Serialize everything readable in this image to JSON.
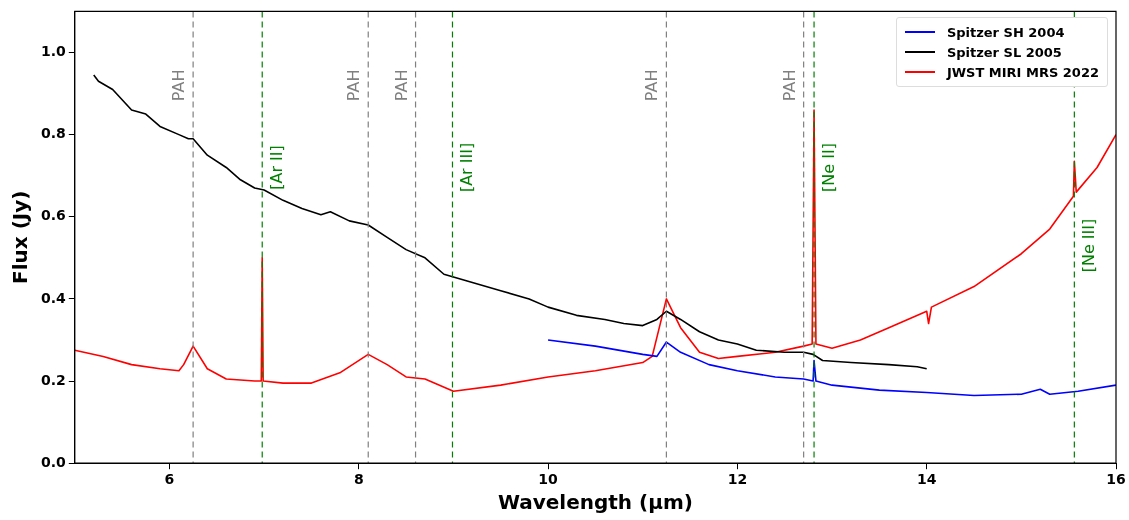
{
  "chart_data": {
    "type": "line",
    "xlabel": "Wavelength (μm)",
    "ylabel": "Flux (Jy)",
    "xlim": [
      5,
      16
    ],
    "xticks": [
      6,
      8,
      10,
      12,
      14,
      16
    ],
    "ylim": [
      0,
      1.1
    ],
    "yticks": [
      {
        "value": 0,
        "label": "0.0"
      },
      0.2,
      0.4,
      0.6,
      0.8,
      {
        "value": 1,
        "label": "1.0"
      }
    ],
    "grid": false,
    "legend": "top right",
    "marker": "none",
    "line_style": "solid",
    "series": [
      {
        "name": "Spitzer SH 2004",
        "color": "#0000ff",
        "x": [
          10.0,
          10.5,
          11.0,
          11.15,
          11.25,
          11.4,
          11.7,
          12.0,
          12.4,
          12.7,
          12.8,
          12.81,
          12.83,
          13.0,
          13.5,
          14.0,
          14.5,
          15.0,
          15.2,
          15.3,
          15.6,
          16.0
        ],
        "values": [
          0.3,
          0.285,
          0.265,
          0.26,
          0.295,
          0.27,
          0.24,
          0.225,
          0.21,
          0.205,
          0.2,
          0.25,
          0.2,
          0.19,
          0.178,
          0.172,
          0.165,
          0.168,
          0.18,
          0.168,
          0.175,
          0.19
        ]
      },
      {
        "name": "Spitzer SL 2005",
        "color": "#000000",
        "x": [
          5.2,
          5.25,
          5.4,
          5.6,
          5.75,
          5.9,
          6.1,
          6.2,
          6.25,
          6.4,
          6.6,
          6.75,
          6.9,
          7.0,
          7.2,
          7.4,
          7.6,
          7.7,
          7.9,
          8.1,
          8.3,
          8.5,
          8.7,
          8.9,
          9.2,
          9.5,
          9.8,
          10.0,
          10.3,
          10.6,
          10.8,
          11.0,
          11.15,
          11.25,
          11.4,
          11.6,
          11.8,
          12.0,
          12.2,
          12.5,
          12.7,
          12.8,
          12.9,
          13.2,
          13.6,
          13.9,
          14.0
        ],
        "values": [
          0.945,
          0.93,
          0.91,
          0.86,
          0.85,
          0.82,
          0.8,
          0.79,
          0.79,
          0.75,
          0.72,
          0.69,
          0.67,
          0.665,
          0.64,
          0.62,
          0.605,
          0.612,
          0.59,
          0.58,
          0.55,
          0.52,
          0.5,
          0.46,
          0.44,
          0.42,
          0.4,
          0.38,
          0.36,
          0.35,
          0.34,
          0.335,
          0.35,
          0.37,
          0.35,
          0.32,
          0.3,
          0.29,
          0.275,
          0.27,
          0.27,
          0.265,
          0.25,
          0.245,
          0.24,
          0.235,
          0.23
        ]
      },
      {
        "name": "JWST MIRI MRS 2022",
        "color": "#ff0000",
        "x": [
          5.0,
          5.3,
          5.6,
          5.9,
          6.1,
          6.15,
          6.25,
          6.4,
          6.6,
          6.9,
          6.97,
          6.98,
          6.99,
          7.2,
          7.5,
          7.8,
          8.1,
          8.3,
          8.5,
          8.7,
          9.0,
          9.5,
          10.0,
          10.5,
          11.0,
          11.1,
          11.25,
          11.4,
          11.6,
          11.8,
          12.0,
          12.4,
          12.7,
          12.79,
          12.81,
          12.83,
          13.0,
          13.3,
          13.6,
          14.0,
          14.02,
          14.05,
          14.5,
          15.0,
          15.3,
          15.55,
          15.56,
          15.58,
          15.8,
          16.0
        ],
        "values": [
          0.275,
          0.26,
          0.24,
          0.23,
          0.225,
          0.24,
          0.285,
          0.23,
          0.205,
          0.2,
          0.2,
          0.5,
          0.2,
          0.195,
          0.195,
          0.22,
          0.265,
          0.24,
          0.21,
          0.205,
          0.175,
          0.19,
          0.21,
          0.225,
          0.245,
          0.26,
          0.4,
          0.33,
          0.27,
          0.255,
          0.26,
          0.27,
          0.285,
          0.29,
          0.86,
          0.29,
          0.28,
          0.3,
          0.33,
          0.37,
          0.34,
          0.38,
          0.43,
          0.51,
          0.57,
          0.65,
          0.735,
          0.66,
          0.72,
          0.8
        ]
      }
    ],
    "ref_lines": [
      {
        "axis": "x",
        "value": 6.25,
        "label": "PAH",
        "color": "#808080",
        "line_style": "dashed"
      },
      {
        "axis": "x",
        "value": 8.1,
        "label": "PAH",
        "color": "#808080",
        "line_style": "dashed"
      },
      {
        "axis": "x",
        "value": 8.6,
        "label": "PAH",
        "color": "#808080",
        "line_style": "dashed"
      },
      {
        "axis": "x",
        "value": 11.25,
        "label": "PAH",
        "color": "#808080",
        "line_style": "dashed"
      },
      {
        "axis": "x",
        "value": 12.7,
        "label": "PAH",
        "color": "#808080",
        "line_style": "dashed"
      },
      {
        "axis": "x",
        "value": 6.98,
        "label": "[Ar II]",
        "color": "#008000",
        "line_style": "dashed"
      },
      {
        "axis": "x",
        "value": 8.99,
        "label": "[Ar III]",
        "color": "#008000",
        "line_style": "dashed"
      },
      {
        "axis": "x",
        "value": 12.81,
        "label": "[Ne II]",
        "color": "#008000",
        "line_style": "dashed"
      },
      {
        "axis": "x",
        "value": 15.56,
        "label": "[Ne III]",
        "color": "#008000",
        "line_style": "dashed"
      }
    ]
  }
}
